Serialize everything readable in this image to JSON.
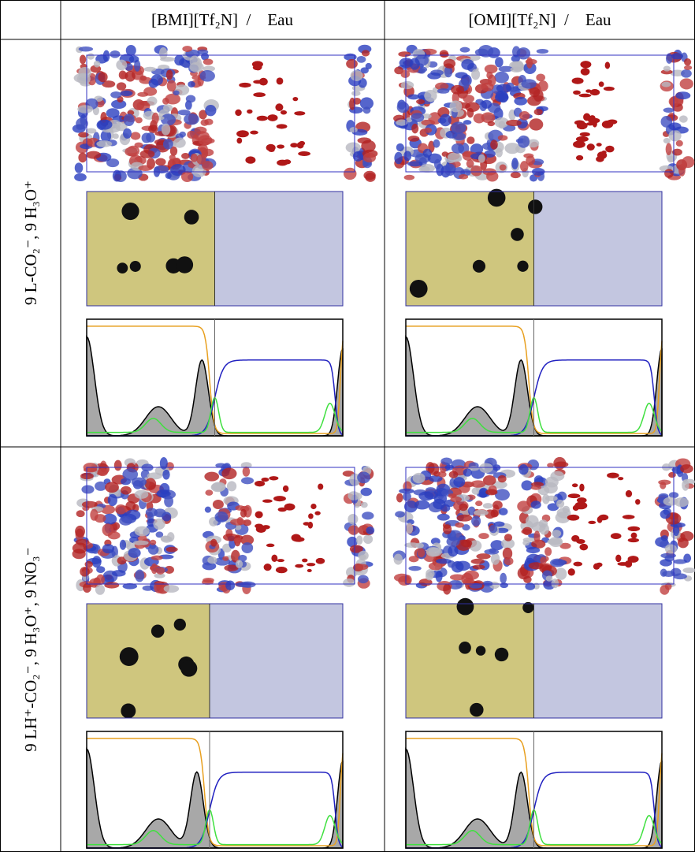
{
  "table": {
    "columns": [
      "[BMI][Tf₂N]  /    Eau",
      "[OMI][Tf₂N]  /    Eau"
    ],
    "rows": [
      "9 L-CO₂⁻, 9 H₃O⁺",
      "9 LH⁺-CO₂⁻, 9 H₃O⁺, 9 NO₃⁻"
    ]
  }
}
